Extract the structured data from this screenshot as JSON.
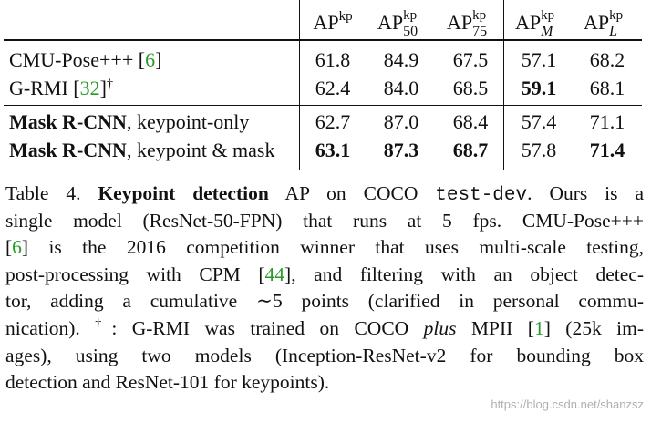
{
  "table": {
    "headers": [
      {
        "base": "AP",
        "sup": "kp",
        "sub": ""
      },
      {
        "base": "AP",
        "sup": "kp",
        "sub": "50"
      },
      {
        "base": "AP",
        "sup": "kp",
        "sub": "75"
      },
      {
        "base": "AP",
        "sup": "kp",
        "sub": "M"
      },
      {
        "base": "AP",
        "sup": "kp",
        "sub": "L"
      }
    ],
    "rows": [
      {
        "name_bold": "",
        "name_rest": "CMU-Pose+++ [",
        "ref": "6",
        "name_tail": "]",
        "dagger": "",
        "values": [
          "61.8",
          "84.9",
          "67.5",
          "57.1",
          "68.2"
        ],
        "bold": [
          false,
          false,
          false,
          false,
          false
        ]
      },
      {
        "name_bold": "",
        "name_rest": "G-RMI [",
        "ref": "32",
        "name_tail": "]",
        "dagger": "†",
        "values": [
          "62.4",
          "84.0",
          "68.5",
          "59.1",
          "68.1"
        ],
        "bold": [
          false,
          false,
          false,
          true,
          false
        ]
      },
      {
        "name_bold": "Mask R-CNN",
        "name_rest": ", keypoint-only",
        "ref": "",
        "name_tail": "",
        "dagger": "",
        "values": [
          "62.7",
          "87.0",
          "68.4",
          "57.4",
          "71.1"
        ],
        "bold": [
          false,
          false,
          false,
          false,
          false
        ]
      },
      {
        "name_bold": "Mask R-CNN",
        "name_rest": ", keypoint & mask",
        "ref": "",
        "name_tail": "",
        "dagger": "",
        "values": [
          "63.1",
          "87.3",
          "68.7",
          "57.8",
          "71.4"
        ],
        "bold": [
          true,
          true,
          true,
          false,
          true
        ]
      }
    ]
  },
  "caption": {
    "l1a": "Table 4. ",
    "l1b": "Keypoint detection",
    "l1c": " AP on COCO ",
    "l1tt": "test-dev",
    "l1d": ". Ours is a",
    "l2": "single model (ResNet-50-FPN) that runs at 5 fps. CMU-Pose+++",
    "l3a": "[",
    "l3r": "6",
    "l3b": "] is the 2016 competition winner that uses multi-scale testing,",
    "l4a": "post-processing with CPM [",
    "l4r": "44",
    "l4b": "], and filtering with an object detec-",
    "l5": "tor, adding a cumulative ∼5 points (clarified in personal commu-",
    "l6a": "nication). ",
    "l6dag": "†",
    "l6b": ": G-RMI was trained on COCO ",
    "l6it": "plus",
    "l6c": " MPII [",
    "l6r": "1",
    "l6d": "] (25k im-",
    "l7": "ages), using two models (Inception-ResNet-v2 for bounding box",
    "l8": "detection and ResNet-101 for keypoints)."
  },
  "watermark": "https://blog.csdn.net/shanzsz"
}
